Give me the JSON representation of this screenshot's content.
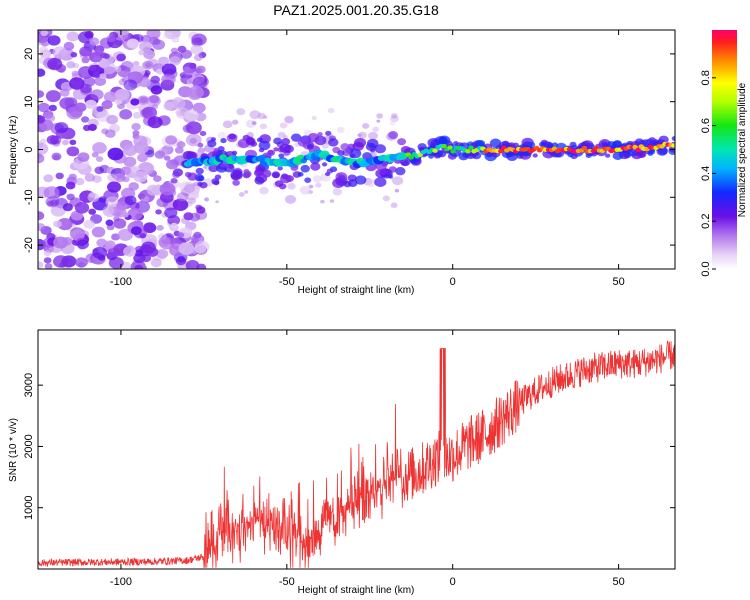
{
  "title": "PAZ1.2025.001.20.35.G18",
  "chart_data": [
    {
      "type": "heatmap",
      "xlabel": "Height of straight line (km)",
      "ylabel": "Frequency (Hz)",
      "xlim": [
        -125,
        67
      ],
      "ylim": [
        -25,
        25
      ],
      "xticks": [
        -100,
        -50,
        0,
        50
      ],
      "yticks": [
        20,
        10,
        0,
        -10,
        -20
      ],
      "ridge": {
        "x": [
          -80,
          -70,
          -60,
          -50,
          -40,
          -30,
          -20,
          -10,
          -3,
          0,
          10,
          20,
          30,
          40,
          50,
          60,
          67
        ],
        "freq": [
          -3,
          -2,
          -2,
          -3,
          -1,
          -3,
          -2,
          -1,
          0.5,
          0,
          0,
          0,
          0,
          0,
          0,
          0.5,
          1
        ]
      },
      "colorbar": {
        "label": "Normalized spectral amplitude",
        "range": [
          0,
          1
        ],
        "ticks": [
          "0.0",
          "0.2",
          "0.4",
          "0.6",
          "0.8"
        ]
      },
      "grid": false
    },
    {
      "type": "line",
      "xlabel": "Height of straight line (km)",
      "ylabel": "SNR (10 * v/v)",
      "xlim": [
        -125,
        67
      ],
      "ylim": [
        0,
        3900
      ],
      "xticks": [
        -100,
        -50,
        0,
        50
      ],
      "yticks": [
        1000,
        2000,
        3000
      ],
      "color": "#ee3333",
      "series": [
        {
          "x": [
            -125,
            -110,
            -90,
            -80,
            -75,
            -70,
            -65,
            -60,
            -55,
            -50,
            -45,
            -40,
            -35,
            -30,
            -25,
            -20,
            -15,
            -10,
            -5,
            0,
            5,
            10,
            15,
            20,
            25,
            30,
            35,
            40,
            45,
            50,
            55,
            60,
            67
          ],
          "values": [
            100,
            110,
            120,
            140,
            200,
            600,
            700,
            800,
            700,
            550,
            500,
            650,
            900,
            1100,
            1250,
            1450,
            1500,
            1600,
            1800,
            1850,
            2050,
            2200,
            2450,
            2700,
            2900,
            3050,
            3150,
            3250,
            3300,
            3350,
            3350,
            3400,
            3500
          ]
        }
      ],
      "grid": false
    }
  ]
}
